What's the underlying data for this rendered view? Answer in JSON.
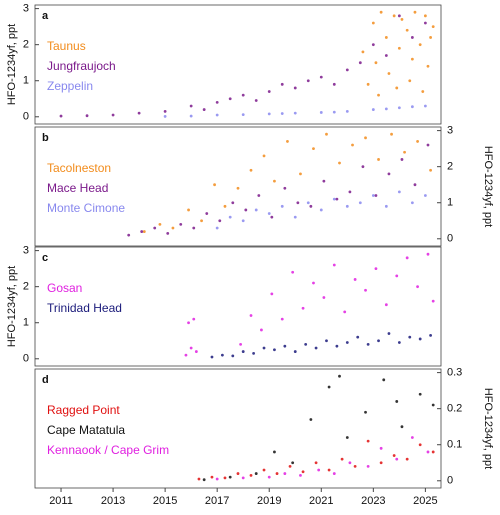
{
  "chart_data": [
    {
      "type": "scatter",
      "title": "a",
      "ylabel": "HFO-1234yf,  ppt",
      "y_axis_side": "left",
      "xlim": [
        2010,
        2025.6
      ],
      "ylim": [
        -0.2,
        3.1
      ],
      "yticks": [
        0,
        1,
        2,
        3
      ],
      "series": [
        {
          "name": "Taunus",
          "color": "#f28c1c",
          "x": [
            2022.6,
            2022.8,
            2023.0,
            2023.1,
            2023.3,
            2023.5,
            2023.6,
            2023.8,
            2024.0,
            2024.1,
            2024.3,
            2024.5,
            2024.6,
            2024.8,
            2025.0,
            2025.1,
            2025.3,
            2023.2,
            2023.9,
            2024.4,
            2024.9,
            2025.2
          ],
          "values": [
            1.8,
            0.9,
            2.6,
            1.5,
            2.9,
            2.2,
            1.2,
            2.8,
            1.9,
            2.7,
            2.4,
            1.6,
            2.9,
            2.0,
            2.8,
            1.4,
            2.5,
            0.6,
            0.8,
            1.0,
            0.7,
            2.2
          ]
        },
        {
          "name": "Jungfraujoch",
          "color": "#7b1a8b",
          "x": [
            2011,
            2012,
            2013,
            2014,
            2015,
            2016,
            2016.5,
            2017,
            2017.5,
            2018,
            2018.5,
            2019,
            2019.5,
            2020,
            2020.5,
            2021,
            2021.5,
            2022,
            2022.5,
            2023,
            2023.5,
            2024,
            2024.5,
            2025
          ],
          "values": [
            0.02,
            0.03,
            0.05,
            0.1,
            0.15,
            0.3,
            0.2,
            0.4,
            0.5,
            0.6,
            0.45,
            0.7,
            0.9,
            0.8,
            1.0,
            1.1,
            0.9,
            1.3,
            1.5,
            2.0,
            1.7,
            2.8,
            2.2,
            2.6
          ]
        },
        {
          "name": "Zeppelin",
          "color": "#8888ee",
          "x": [
            2015,
            2016,
            2017,
            2018,
            2019,
            2020,
            2021,
            2022,
            2023,
            2024,
            2025,
            2019.5,
            2021.5,
            2023.5,
            2024.5
          ],
          "values": [
            0.01,
            0.02,
            0.05,
            0.06,
            0.08,
            0.1,
            0.12,
            0.15,
            0.2,
            0.25,
            0.3,
            0.09,
            0.13,
            0.22,
            0.28
          ]
        }
      ]
    },
    {
      "type": "scatter",
      "title": "b",
      "ylabel": "HFO-1234yf,  ppt",
      "y_axis_side": "right",
      "xlim": [
        2010,
        2025.6
      ],
      "ylim": [
        -0.2,
        3.1
      ],
      "yticks": [
        0,
        1,
        2,
        3
      ],
      "series": [
        {
          "name": "Tacolneston",
          "color": "#f28c1c",
          "x": [
            2014.2,
            2014.8,
            2015.3,
            2015.9,
            2016.4,
            2016.9,
            2017.3,
            2017.8,
            2018.3,
            2018.8,
            2019.2,
            2019.7,
            2020.2,
            2020.7,
            2021.2,
            2021.7,
            2022.2,
            2022.7,
            2023.2,
            2023.7,
            2024.2,
            2024.7,
            2025.2
          ],
          "values": [
            0.2,
            0.4,
            0.3,
            0.8,
            0.5,
            1.5,
            0.9,
            1.4,
            1.9,
            2.3,
            1.6,
            2.7,
            1.8,
            2.5,
            2.9,
            2.1,
            2.6,
            2.8,
            2.2,
            2.9,
            2.4,
            2.7,
            1.9
          ]
        },
        {
          "name": "Mace Head",
          "color": "#7b1a8b",
          "x": [
            2013.6,
            2014.1,
            2014.6,
            2015.1,
            2015.6,
            2016.1,
            2016.6,
            2017.1,
            2017.6,
            2018.1,
            2018.6,
            2019.1,
            2019.6,
            2020.1,
            2020.6,
            2021.1,
            2021.6,
            2022.1,
            2022.6,
            2023.1,
            2023.6,
            2024.1,
            2024.6,
            2025.1
          ],
          "values": [
            0.1,
            0.2,
            0.3,
            0.15,
            0.4,
            0.3,
            0.7,
            0.5,
            1.0,
            0.8,
            1.2,
            0.6,
            1.4,
            1.0,
            0.9,
            1.6,
            1.1,
            1.3,
            2.0,
            1.2,
            1.8,
            2.2,
            1.5,
            2.6
          ]
        },
        {
          "name": "Monte Cimone",
          "color": "#8888ee",
          "x": [
            2017.0,
            2017.5,
            2018.0,
            2018.5,
            2019.0,
            2019.5,
            2020.0,
            2020.5,
            2021.0,
            2021.5,
            2022.0,
            2022.5,
            2023.0,
            2023.5,
            2024.0,
            2024.5,
            2025.0
          ],
          "values": [
            0.3,
            0.6,
            0.5,
            0.8,
            0.7,
            0.9,
            0.6,
            1.0,
            0.8,
            1.1,
            0.9,
            1.0,
            1.2,
            0.9,
            1.3,
            1.0,
            1.2
          ]
        }
      ]
    },
    {
      "type": "scatter",
      "title": "c",
      "ylabel": "HFO-1234yf,  ppt",
      "y_axis_side": "left",
      "xlim": [
        2010,
        2025.6
      ],
      "ylim": [
        -0.2,
        3.1
      ],
      "yticks": [
        0,
        1,
        2,
        3
      ],
      "series": [
        {
          "name": "Gosan",
          "color": "#e020e0",
          "x": [
            2015.8,
            2015.9,
            2016.0,
            2016.1,
            2016.2,
            2017.9,
            2018.3,
            2018.7,
            2019.1,
            2019.5,
            2019.9,
            2020.3,
            2020.7,
            2021.1,
            2021.5,
            2021.9,
            2022.3,
            2022.7,
            2023.1,
            2023.5,
            2023.9,
            2024.3,
            2024.7,
            2025.1,
            2025.3
          ],
          "values": [
            0.1,
            1.0,
            0.3,
            1.1,
            0.2,
            0.4,
            1.2,
            0.8,
            1.8,
            1.1,
            2.4,
            1.4,
            2.1,
            1.7,
            2.6,
            1.3,
            2.2,
            1.9,
            2.5,
            1.5,
            2.3,
            2.8,
            2.0,
            2.9,
            1.6
          ]
        },
        {
          "name": "Trinidad Head",
          "color": "#1a1a7a",
          "x": [
            2016.8,
            2017.2,
            2017.6,
            2018.0,
            2018.4,
            2018.8,
            2019.2,
            2019.6,
            2020.0,
            2020.4,
            2020.8,
            2021.2,
            2021.6,
            2022.0,
            2022.4,
            2022.8,
            2023.2,
            2023.6,
            2024.0,
            2024.4,
            2024.8,
            2025.2
          ],
          "values": [
            0.05,
            0.1,
            0.08,
            0.2,
            0.15,
            0.3,
            0.25,
            0.35,
            0.2,
            0.4,
            0.3,
            0.5,
            0.35,
            0.45,
            0.6,
            0.4,
            0.5,
            0.7,
            0.45,
            0.6,
            0.55,
            0.65
          ]
        }
      ]
    },
    {
      "type": "scatter",
      "title": "d",
      "ylabel": "HFO-1234yf,  ppt",
      "y_axis_side": "right",
      "xlim": [
        2010,
        2025.6
      ],
      "ylim": [
        -0.02,
        0.31
      ],
      "yticks": [
        0,
        0.1,
        0.2,
        0.3
      ],
      "xticks": [
        2011,
        2013,
        2015,
        2017,
        2019,
        2021,
        2023,
        2025
      ],
      "series": [
        {
          "name": "Ragged Point",
          "color": "#e01010",
          "x": [
            2016.3,
            2016.8,
            2017.3,
            2017.8,
            2018.3,
            2018.8,
            2019.3,
            2019.8,
            2020.3,
            2020.8,
            2021.3,
            2021.8,
            2022.3,
            2022.8,
            2023.3,
            2023.8,
            2024.3,
            2024.8,
            2025.3
          ],
          "values": [
            0.005,
            0.01,
            0.008,
            0.02,
            0.015,
            0.03,
            0.02,
            0.04,
            0.025,
            0.05,
            0.03,
            0.06,
            0.04,
            0.11,
            0.05,
            0.07,
            0.06,
            0.1,
            0.08
          ]
        },
        {
          "name": "Cape Matatula",
          "color": "#111111",
          "x": [
            2016.5,
            2017.5,
            2018.5,
            2019.2,
            2019.9,
            2020.6,
            2021.3,
            2022.0,
            2022.7,
            2023.4,
            2024.1,
            2024.8,
            2025.3,
            2021.7,
            2023.9
          ],
          "values": [
            0.003,
            0.01,
            0.02,
            0.08,
            0.05,
            0.17,
            0.26,
            0.12,
            0.19,
            0.28,
            0.15,
            0.24,
            0.21,
            0.29,
            0.22
          ]
        },
        {
          "name": "Kennaook / Cape Grim",
          "color": "#e020e0",
          "x": [
            2017.0,
            2018.0,
            2019.0,
            2019.6,
            2020.2,
            2020.9,
            2021.5,
            2022.1,
            2022.8,
            2023.3,
            2023.9,
            2024.5,
            2025.1
          ],
          "values": [
            0.005,
            0.008,
            0.01,
            0.02,
            0.015,
            0.03,
            0.02,
            0.05,
            0.04,
            0.09,
            0.06,
            0.12,
            0.08
          ]
        }
      ]
    }
  ]
}
